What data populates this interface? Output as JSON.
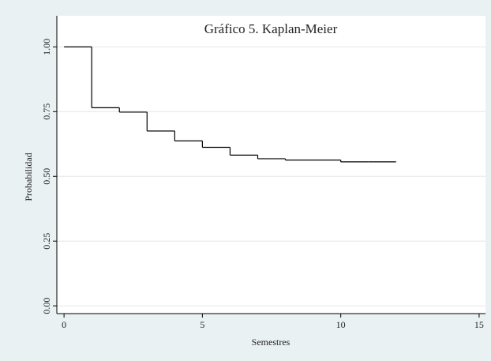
{
  "chart_data": {
    "type": "step",
    "title": "Gráfico 5. Kaplan-Meier",
    "x_label": "Semestres",
    "y_label": "Probabilidad",
    "x": [
      0,
      1,
      2,
      3,
      4,
      5,
      6,
      7,
      8,
      9,
      10,
      11,
      12
    ],
    "values": [
      1,
      0.765,
      0.748,
      0.675,
      0.637,
      0.612,
      0.582,
      0.568,
      0.563,
      0.563,
      0.556,
      0.556,
      0.556
    ],
    "color": "#000000",
    "xlim": [
      -0.26,
      15.23
    ],
    "ylim": [
      -0.03,
      1.12
    ],
    "xticks": [
      0,
      5,
      10,
      15
    ],
    "yticks": [
      {
        "value": 0,
        "label": "0.00"
      },
      {
        "value": 0.25,
        "label": "0.25"
      },
      {
        "value": 0.5,
        "label": "0.50"
      },
      {
        "value": 0.75,
        "label": "0.75"
      },
      {
        "value": 1,
        "label": "1.00"
      }
    ],
    "grid": true
  }
}
